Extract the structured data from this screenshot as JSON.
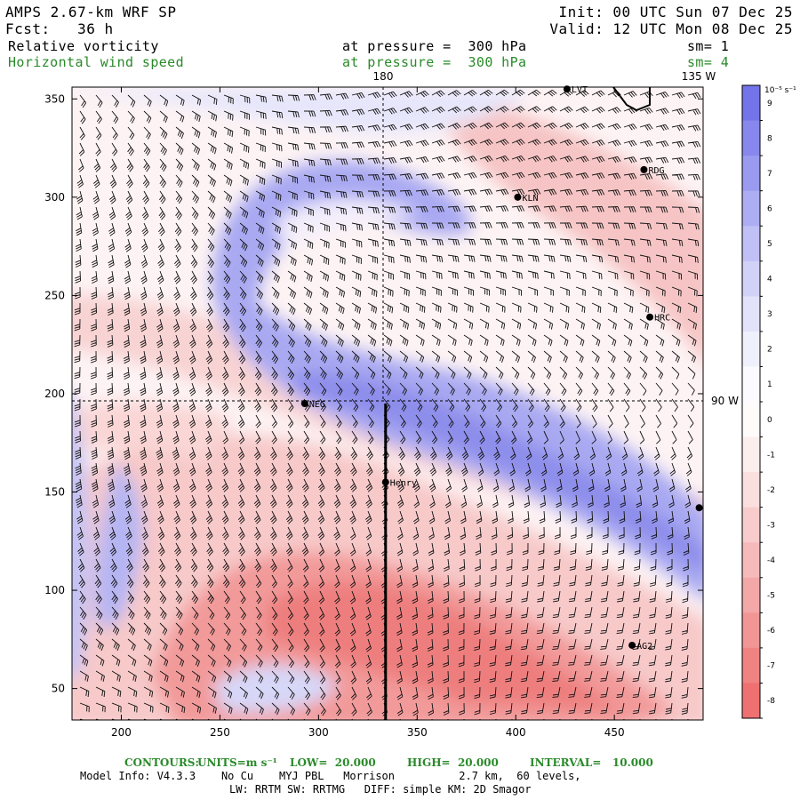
{
  "header": {
    "model": "AMPS 2.67-km WRF SP",
    "init": "Init: 00 UTC Sun 07 Dec 25",
    "forecast": "Fcst:   36 h",
    "valid": "Valid: 12 UTC Mon 08 Dec 25"
  },
  "fields": {
    "field1_name": "Relative vorticity",
    "field1_level": "at pressure =  300 hPa",
    "field1_sm": "sm= 1",
    "field2_name": "Horizontal wind speed",
    "field2_level": "at pressure =  300 hPa",
    "field2_sm": "sm= 4"
  },
  "map": {
    "lon_180": "180",
    "lon_135w": "135 W",
    "lon_90w": "90 W",
    "x_ticks": [
      200,
      250,
      300,
      350,
      400,
      450
    ],
    "y_ticks": [
      50,
      100,
      150,
      200,
      250,
      300,
      350
    ],
    "x_range": [
      175,
      495
    ],
    "y_range": [
      34,
      356
    ],
    "stations": [
      {
        "name": "LVT",
        "x": 426,
        "y": 355
      },
      {
        "name": "RDG",
        "x": 465,
        "y": 314
      },
      {
        "name": "KLN",
        "x": 401,
        "y": 300
      },
      {
        "name": "HRC",
        "x": 468,
        "y": 239
      },
      {
        "name": "NEG",
        "x": 293,
        "y": 195
      },
      {
        "name": "Henry",
        "x": 334,
        "y": 155
      },
      {
        "name": "AG2",
        "x": 459,
        "y": 72
      },
      {
        "name": "",
        "x": 493,
        "y": 142
      }
    ],
    "cross_section_x": 334,
    "cross_section_y_range": [
      34,
      195
    ]
  },
  "colorbar": {
    "units": "10⁻⁵ s⁻¹",
    "labels": [
      "9",
      "8",
      "7",
      "6",
      "5",
      "4",
      "3",
      "2",
      "1",
      "0",
      "-1",
      "-2",
      "-3",
      "-4",
      "-5",
      "-6",
      "-7",
      "-8"
    ],
    "colors": [
      "#7474ea",
      "#8787ee",
      "#9a9af0",
      "#adadf3",
      "#c0c0f6",
      "#d2d2f8",
      "#e2e2fb",
      "#f0f0fd",
      "#fbfbff",
      "#fffbfb",
      "#fdeeee",
      "#fbdede",
      "#f8cccc",
      "#f6baba",
      "#f4a7a7",
      "#f29595",
      "#f08282",
      "#ee7070"
    ]
  },
  "footer": {
    "contours_label": "CONTOURS:",
    "contours_units": "UNITS=m s⁻¹",
    "contours_low": "LOW=  20.000",
    "contours_high": "HIGH=  20.000",
    "contours_interval": "INTERVAL=   10.000",
    "model_info": "Model Info: V4.3.3    No Cu    MYJ PBL   Morrison          2.7 km,  60 levels,",
    "model_info2": "LW: RRTM SW: RRTMG   DIFF: simple KM: 2D Smagor"
  },
  "palette": {
    "pos": "#7878ea",
    "neg": "#ee7070",
    "green": "#2a8a2a"
  }
}
